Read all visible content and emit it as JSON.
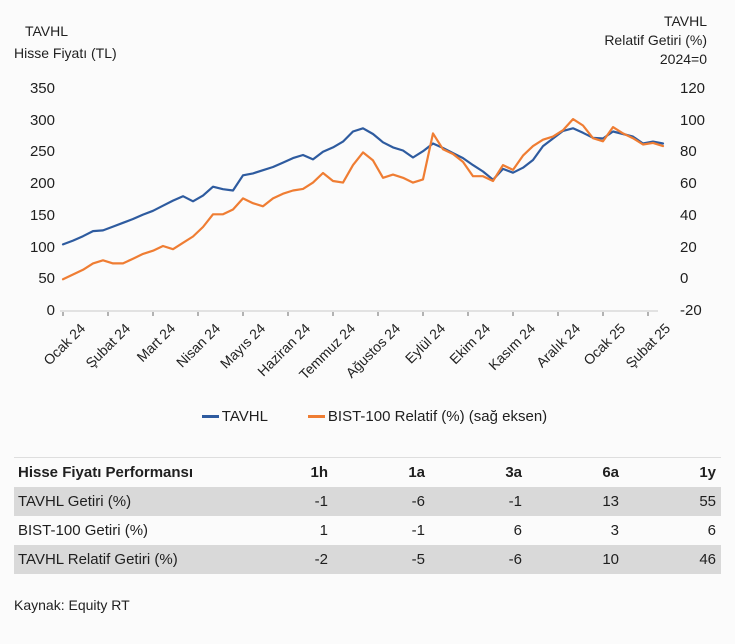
{
  "chart_data": {
    "type": "line",
    "title_left": {
      "line1": "TAVHL",
      "line2": "Hisse Fiyatı (TL)"
    },
    "title_right": {
      "line1": "TAVHL",
      "line2": "Relatif Getiri (%)",
      "line3": "2024=0"
    },
    "categories": [
      "Ocak 24",
      "Şubat 24",
      "Mart 24",
      "Nisan 24",
      "Mayıs 24",
      "Haziran 24",
      "Temmuz 24",
      "Ağustos 24",
      "Eylül 24",
      "Ekim 24",
      "Kasım 24",
      "Aralık 24",
      "Ocak 25",
      "Şubat 25"
    ],
    "left_axis": {
      "label": "Hisse Fiyatı (TL)",
      "ticks": [
        350,
        300,
        250,
        200,
        150,
        100,
        50,
        0
      ],
      "range": [
        0,
        350
      ]
    },
    "right_axis": {
      "label": "Relatif Getiri (%) 2024=0",
      "ticks": [
        120,
        100,
        80,
        60,
        40,
        20,
        0,
        -20
      ],
      "range": [
        -20,
        120
      ]
    },
    "grid": "off",
    "legend_position": "bottom",
    "axis_line_color": "#d9d9d9",
    "tick_color": "#8c8c8c",
    "series": [
      {
        "key": "tavhl",
        "name": "TAVHL",
        "axis": "left",
        "color": "#2e5b9f",
        "values": [
          105,
          111,
          118,
          126,
          127,
          133,
          139,
          145,
          152,
          158,
          166,
          174,
          181,
          173,
          182,
          196,
          192,
          190,
          214,
          217,
          222,
          227,
          234,
          241,
          246,
          239,
          251,
          258,
          267,
          283,
          288,
          279,
          266,
          258,
          253,
          242,
          252,
          264,
          257,
          249,
          241,
          230,
          220,
          207,
          224,
          218,
          226,
          238,
          260,
          272,
          284,
          288,
          281,
          273,
          272,
          283,
          279,
          275,
          264,
          267,
          264
        ]
      },
      {
        "key": "bist100-relative",
        "name": "BIST-100 Relatif (%) (sağ eksen)",
        "axis": "right",
        "color": "#ef7d33",
        "values": [
          0,
          3,
          6,
          10,
          12,
          10,
          10,
          13,
          16,
          18,
          21,
          19,
          23,
          27,
          33,
          41,
          41,
          44,
          51,
          48,
          46,
          51,
          54,
          56,
          57,
          61,
          67,
          62,
          61,
          72,
          80,
          75,
          64,
          66,
          64,
          61,
          63,
          92,
          82,
          79,
          74,
          65,
          65,
          62,
          72,
          69,
          78,
          84,
          88,
          90,
          94,
          101,
          97,
          89,
          87,
          96,
          92,
          89,
          85,
          86,
          84
        ]
      }
    ]
  },
  "table": {
    "columns": [
      "Hisse Fiyatı Performansı",
      "1h",
      "1a",
      "3a",
      "6a",
      "1y"
    ],
    "rows": [
      {
        "label": "TAVHL Getiri (%)",
        "values": [
          "-1",
          "-6",
          "-1",
          "13",
          "55"
        ]
      },
      {
        "label": "BIST-100 Getiri (%)",
        "values": [
          "1",
          "-1",
          "6",
          "3",
          "6"
        ]
      },
      {
        "label": "TAVHL Relatif Getiri (%)",
        "values": [
          "-2",
          "-5",
          "-6",
          "10",
          "46"
        ]
      }
    ],
    "stripe_color": "#d9d9d9"
  },
  "footer": {
    "source": "Kaynak: Equity RT"
  }
}
